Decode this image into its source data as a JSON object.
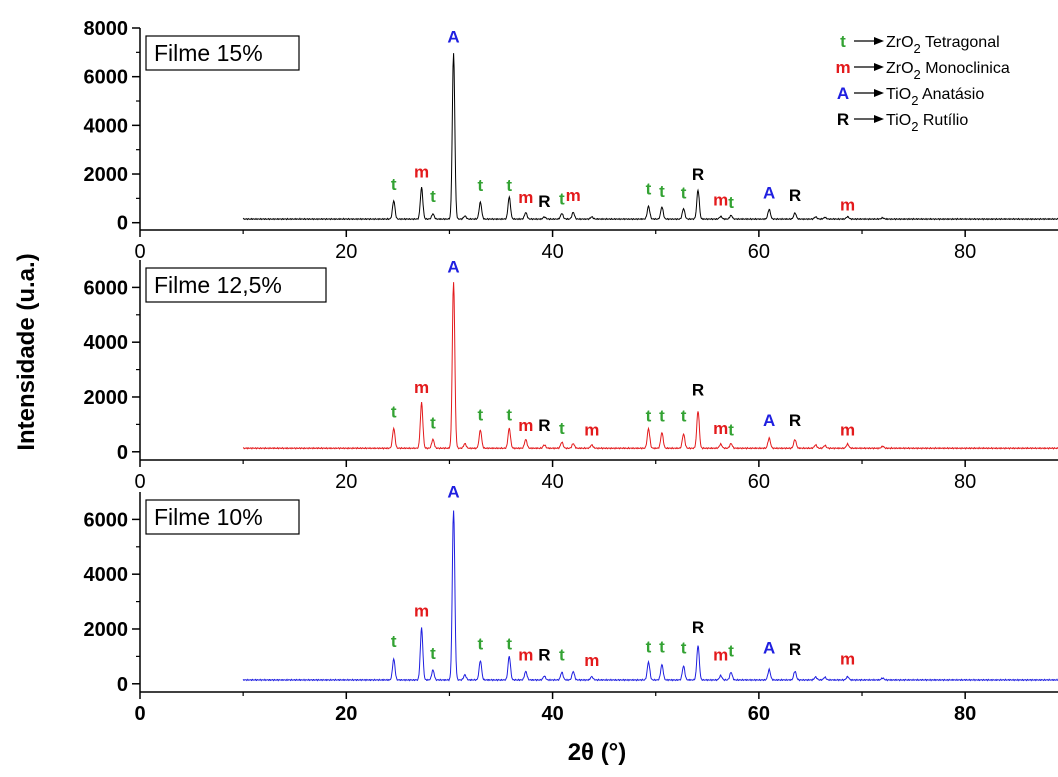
{
  "chart_data": {
    "type": "line",
    "xlabel": "2θ (°)",
    "ylabel": "Intensidade (u.a.)",
    "xlim": [
      0,
      89
    ],
    "x_ticks": [
      0,
      20,
      40,
      60,
      80
    ],
    "legend": {
      "placement": "top-right",
      "entries": [
        {
          "symbol": "t",
          "phase": "ZrO",
          "sub": "2",
          "name": "Tetragonal",
          "color": "#33a233"
        },
        {
          "symbol": "m",
          "phase": "ZrO",
          "sub": "2",
          "name": "Monoclinica",
          "color": "#e31a1c"
        },
        {
          "symbol": "A",
          "phase": "TiO",
          "sub": "2",
          "name": "Anatásio",
          "color": "#1f1fe0"
        },
        {
          "symbol": "R",
          "phase": "TiO",
          "sub": "2",
          "name": "Rutílio",
          "color": "#000000"
        }
      ]
    },
    "panels": [
      {
        "label": "Filme 15%",
        "color": "#000000",
        "ylim": [
          -300,
          8000
        ],
        "y_ticks": [
          0,
          2000,
          4000,
          6000,
          8000
        ],
        "baseline": 150,
        "peaks": [
          [
            24.6,
            900
          ],
          [
            27.3,
            1450
          ],
          [
            28.4,
            360
          ],
          [
            30.4,
            6950
          ],
          [
            31.5,
            280
          ],
          [
            33.0,
            850
          ],
          [
            35.8,
            1050
          ],
          [
            37.4,
            420
          ],
          [
            39.2,
            240
          ],
          [
            40.9,
            380
          ],
          [
            42.0,
            430
          ],
          [
            43.8,
            240
          ],
          [
            49.3,
            680
          ],
          [
            50.6,
            650
          ],
          [
            52.7,
            580
          ],
          [
            54.1,
            1350
          ],
          [
            56.3,
            260
          ],
          [
            57.3,
            300
          ],
          [
            61.0,
            550
          ],
          [
            63.5,
            400
          ],
          [
            65.5,
            240
          ],
          [
            66.4,
            220
          ],
          [
            68.6,
            250
          ],
          [
            72.0,
            200
          ]
        ],
        "annotations": [
          {
            "text": "t",
            "x": 24.6,
            "y": 1350
          },
          {
            "text": "m",
            "x": 27.3,
            "y": 1850
          },
          {
            "text": "t",
            "x": 28.4,
            "y": 850
          },
          {
            "text": "A",
            "x": 30.4,
            "y": 7400
          },
          {
            "text": "t",
            "x": 33.0,
            "y": 1300
          },
          {
            "text": "t",
            "x": 35.8,
            "y": 1300
          },
          {
            "text": "m",
            "x": 37.4,
            "y": 800
          },
          {
            "text": "R",
            "x": 39.2,
            "y": 650
          },
          {
            "text": "t",
            "x": 40.9,
            "y": 750
          },
          {
            "text": "m",
            "x": 42.0,
            "y": 900
          },
          {
            "text": "t",
            "x": 49.3,
            "y": 1150
          },
          {
            "text": "t",
            "x": 50.6,
            "y": 1050
          },
          {
            "text": "t",
            "x": 52.7,
            "y": 1000
          },
          {
            "text": "R",
            "x": 54.1,
            "y": 1750
          },
          {
            "text": "m",
            "x": 56.3,
            "y": 700
          },
          {
            "text": "t",
            "x": 57.3,
            "y": 600
          },
          {
            "text": "A",
            "x": 61.0,
            "y": 1000
          },
          {
            "text": "R",
            "x": 63.5,
            "y": 900
          },
          {
            "text": "m",
            "x": 68.6,
            "y": 500
          }
        ]
      },
      {
        "label": "Filme 12,5%",
        "color": "#e31a1c",
        "ylim": [
          -300,
          7000
        ],
        "y_ticks": [
          0,
          2000,
          4000,
          6000
        ],
        "baseline": 130,
        "peaks": [
          [
            24.6,
            850
          ],
          [
            27.3,
            1800
          ],
          [
            28.4,
            450
          ],
          [
            30.4,
            6200
          ],
          [
            31.5,
            300
          ],
          [
            33.0,
            800
          ],
          [
            35.8,
            850
          ],
          [
            37.4,
            450
          ],
          [
            39.2,
            250
          ],
          [
            40.9,
            350
          ],
          [
            42.0,
            300
          ],
          [
            43.8,
            250
          ],
          [
            49.3,
            850
          ],
          [
            50.6,
            700
          ],
          [
            52.7,
            650
          ],
          [
            54.1,
            1500
          ],
          [
            56.3,
            280
          ],
          [
            57.3,
            300
          ],
          [
            61.0,
            500
          ],
          [
            63.5,
            450
          ],
          [
            65.5,
            250
          ],
          [
            66.4,
            230
          ],
          [
            68.6,
            280
          ],
          [
            72.0,
            200
          ]
        ],
        "annotations": [
          {
            "text": "t",
            "x": 24.6,
            "y": 1250
          },
          {
            "text": "m",
            "x": 27.3,
            "y": 2150
          },
          {
            "text": "t",
            "x": 28.4,
            "y": 850
          },
          {
            "text": "A",
            "x": 30.4,
            "y": 6550
          },
          {
            "text": "t",
            "x": 33.0,
            "y": 1150
          },
          {
            "text": "t",
            "x": 35.8,
            "y": 1150
          },
          {
            "text": "m",
            "x": 37.4,
            "y": 750
          },
          {
            "text": "R",
            "x": 39.2,
            "y": 750
          },
          {
            "text": "t",
            "x": 40.9,
            "y": 650
          },
          {
            "text": "m",
            "x": 43.8,
            "y": 600
          },
          {
            "text": "t",
            "x": 49.3,
            "y": 1100
          },
          {
            "text": "t",
            "x": 50.6,
            "y": 1100
          },
          {
            "text": "t",
            "x": 52.7,
            "y": 1100
          },
          {
            "text": "R",
            "x": 54.1,
            "y": 2050
          },
          {
            "text": "m",
            "x": 56.3,
            "y": 650
          },
          {
            "text": "t",
            "x": 57.3,
            "y": 600
          },
          {
            "text": "A",
            "x": 61.0,
            "y": 950
          },
          {
            "text": "R",
            "x": 63.5,
            "y": 950
          },
          {
            "text": "m",
            "x": 68.6,
            "y": 600
          }
        ]
      },
      {
        "label": "Filme 10%",
        "color": "#1f1fe0",
        "ylim": [
          -300,
          7000
        ],
        "y_ticks": [
          0,
          2000,
          4000,
          6000
        ],
        "baseline": 140,
        "peaks": [
          [
            24.6,
            900
          ],
          [
            27.3,
            2050
          ],
          [
            28.4,
            500
          ],
          [
            30.4,
            6350
          ],
          [
            31.5,
            330
          ],
          [
            33.0,
            850
          ],
          [
            35.8,
            1000
          ],
          [
            37.4,
            450
          ],
          [
            39.2,
            280
          ],
          [
            40.9,
            420
          ],
          [
            42.0,
            450
          ],
          [
            43.8,
            260
          ],
          [
            49.3,
            800
          ],
          [
            50.6,
            700
          ],
          [
            52.7,
            650
          ],
          [
            54.1,
            1400
          ],
          [
            56.3,
            300
          ],
          [
            57.3,
            420
          ],
          [
            61.0,
            520
          ],
          [
            63.5,
            460
          ],
          [
            65.5,
            250
          ],
          [
            66.4,
            240
          ],
          [
            68.6,
            260
          ],
          [
            72.0,
            210
          ]
        ],
        "annotations": [
          {
            "text": "t",
            "x": 24.6,
            "y": 1350
          },
          {
            "text": "m",
            "x": 27.3,
            "y": 2450
          },
          {
            "text": "t",
            "x": 28.4,
            "y": 900
          },
          {
            "text": "A",
            "x": 30.4,
            "y": 6800
          },
          {
            "text": "t",
            "x": 33.0,
            "y": 1250
          },
          {
            "text": "t",
            "x": 35.8,
            "y": 1250
          },
          {
            "text": "m",
            "x": 37.4,
            "y": 850
          },
          {
            "text": "R",
            "x": 39.2,
            "y": 850
          },
          {
            "text": "t",
            "x": 40.9,
            "y": 850
          },
          {
            "text": "m",
            "x": 43.8,
            "y": 650
          },
          {
            "text": "t",
            "x": 49.3,
            "y": 1150
          },
          {
            "text": "t",
            "x": 50.6,
            "y": 1150
          },
          {
            "text": "t",
            "x": 52.7,
            "y": 1100
          },
          {
            "text": "t",
            "x": 57.3,
            "y": 1000
          },
          {
            "text": "R",
            "x": 54.1,
            "y": 1850
          },
          {
            "text": "m",
            "x": 56.3,
            "y": 850
          },
          {
            "text": "A",
            "x": 61.0,
            "y": 1100
          },
          {
            "text": "R",
            "x": 63.5,
            "y": 1050
          },
          {
            "text": "m",
            "x": 68.6,
            "y": 700
          }
        ]
      }
    ]
  }
}
